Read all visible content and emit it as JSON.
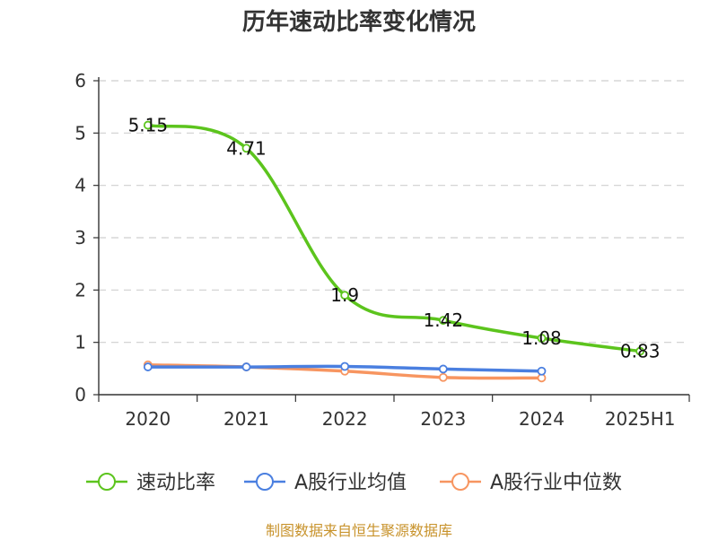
{
  "chart_data": {
    "type": "line",
    "title": "历年速动比率变化情况",
    "categories": [
      "2020",
      "2021",
      "2022",
      "2023",
      "2024",
      "2025H1"
    ],
    "yticks": [
      "0",
      "1",
      "2",
      "3",
      "4",
      "5",
      "6"
    ],
    "ylim": [
      0,
      6
    ],
    "xlabel": "",
    "ylabel": "",
    "grid": true,
    "legend_position": "bottom",
    "series": [
      {
        "name": "速动比率",
        "color": "#5cc41d",
        "values": [
          5.15,
          4.71,
          1.9,
          1.42,
          1.08,
          0.83
        ],
        "labels": [
          "5.15",
          "4.71",
          "1.9",
          "1.42",
          "1.08",
          "0.83"
        ]
      },
      {
        "name": "A股行业均值",
        "color": "#4a7fe0",
        "values": [
          0.53,
          0.53,
          0.54,
          0.49,
          0.45,
          null
        ]
      },
      {
        "name": "A股行业中位数",
        "color": "#f79560",
        "values": [
          0.57,
          0.53,
          0.45,
          0.33,
          0.32,
          null
        ]
      }
    ]
  },
  "source": "制图数据来自恒生聚源数据库"
}
